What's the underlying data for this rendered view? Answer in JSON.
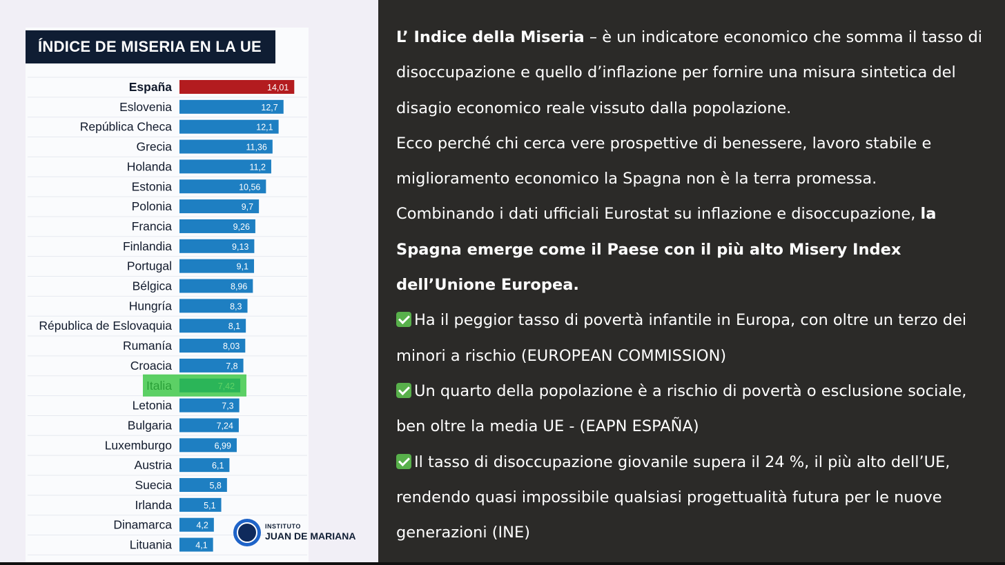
{
  "chart_data": {
    "type": "bar",
    "orientation": "horizontal",
    "title": "ÍNDICE DE MISERIA EN LA UE",
    "categories": [
      "España",
      "Eslovenia",
      "República Checa",
      "Grecia",
      "Holanda",
      "Estonia",
      "Polonia",
      "Francia",
      "Finlandia",
      "Portugal",
      "Bélgica",
      "Hungría",
      "Républica de Eslovaquia",
      "Rumanía",
      "Croacia",
      "Italia",
      "Letonia",
      "Bulgaria",
      "Luxemburgo",
      "Austria",
      "Suecia",
      "Irlanda",
      "Dinamarca",
      "Lituania"
    ],
    "values": [
      14.01,
      12.7,
      12.1,
      11.36,
      11.2,
      10.56,
      9.7,
      9.26,
      9.13,
      9.1,
      8.96,
      8.3,
      8.1,
      8.03,
      7.8,
      7.42,
      7.3,
      7.24,
      6.99,
      6.1,
      5.8,
      5.1,
      4.2,
      4.1
    ],
    "value_labels": [
      "14,01",
      "12,7",
      "12,1",
      "11,36",
      "11,2",
      "10,56",
      "9,7",
      "9,26",
      "9,13",
      "9,1",
      "8,96",
      "8,3",
      "8,1",
      "8,03",
      "7,8",
      "7,42",
      "7,3",
      "7,24",
      "6,99",
      "6,1",
      "5,8",
      "5,1",
      "4,2",
      "4,1"
    ],
    "highlight": {
      "first": "España",
      "highlighted": "Italia"
    },
    "colors": {
      "default_bar": "#1e7fc2",
      "first_bar": "#b31c1f",
      "highlight": "#2fc43a",
      "title_bg": "#0f1d33"
    }
  },
  "logo": {
    "small": "INSTITUTO",
    "big": "JUAN DE MARIANA"
  },
  "text": {
    "p1_bold": "L’ Indice della Miseria",
    "p1_rest": " – è un indicatore economico che somma il tasso di disoccupazione e quello d’inflazione per fornire una misura sintetica del disagio economico reale vissuto dalla popolazione.",
    "p2": "Ecco perché chi cerca vere prospettive di benessere, lavoro stabile e miglioramento economico la Spagna non è la terra promessa.",
    "p3_plain": "Combinando i dati ufficiali Eurostat su inflazione e disoccupazione, ",
    "p3_bold": "la Spagna emerge come il Paese con il più alto Misery Index dell’Unione Europea.",
    "b1": "Ha il peggior tasso di povertà infantile in Europa, con oltre un terzo dei minori a rischio (EUROPEAN COMMISSION)",
    "b2": "Un quarto della popolazione è a rischio di povertà o esclusione sociale, ben oltre la media UE - (EAPN ESPAÑA)",
    "b3": "Il tasso di disoccupazione giovanile supera il 24 %, il più alto dell’UE, rendendo quasi impossibile qualsiasi progettualità futura per le nuove generazioni (INE)"
  }
}
